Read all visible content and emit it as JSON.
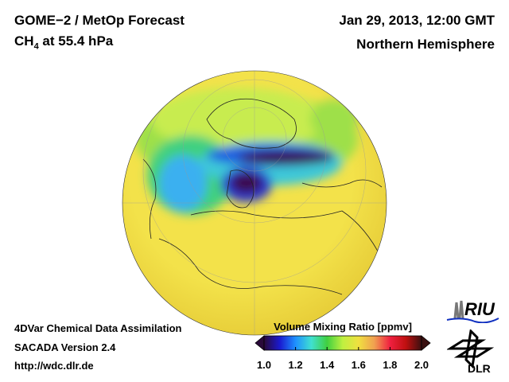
{
  "header": {
    "title_line1": "GOME−2 / MetOp Forecast",
    "species": "CH",
    "species_sub": "4",
    "title_line2_rest": " at 55.4 hPa",
    "date": "Jan 29, 2013, 12:00 GMT",
    "region": "Northern Hemisphere"
  },
  "footer": {
    "line1": "4DVar Chemical Data Assimilation",
    "line2": "SACADA Version 2.4",
    "line3": "http://wdc.dlr.de"
  },
  "colorbar": {
    "title": "Volume Mixing Ratio [ppmv]",
    "min": 1.0,
    "max": 2.0,
    "ticks": [
      "1.0",
      "1.2",
      "1.4",
      "1.6",
      "1.8",
      "2.0"
    ],
    "colors": [
      "#2a0a3a",
      "#1a1ad0",
      "#1e90ff",
      "#40e0d0",
      "#40d040",
      "#c0f040",
      "#f0e040",
      "#f0a050",
      "#f02040",
      "#c01010",
      "#3a1010"
    ]
  },
  "logos": {
    "riu": "RIU",
    "dlr": "DLR"
  }
}
